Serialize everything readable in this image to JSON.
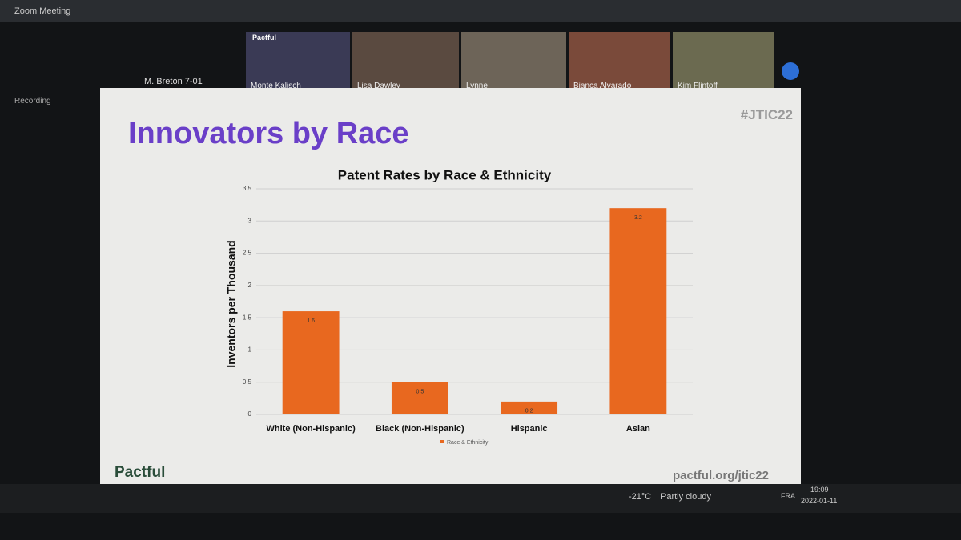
{
  "window": {
    "title": "Zoom Meeting",
    "recording": "Recording"
  },
  "participants": [
    {
      "name": "M. Breton 7-01"
    },
    {
      "name": "Monte Kalisch",
      "badge": "Pactful"
    },
    {
      "name": "Lisa Dawley"
    },
    {
      "name": "Lynne"
    },
    {
      "name": "Bianca Alvarado"
    },
    {
      "name": "Kim Flintoff"
    }
  ],
  "slide": {
    "title": "Innovators by Race",
    "hashtag": "#JTIC22",
    "logo": "Pactful",
    "url": "pactful.org/jtic22"
  },
  "chart_data": {
    "type": "bar",
    "title": "Patent Rates by Race & Ethnicity",
    "y_label": "Inventors per Thousand",
    "categories": [
      "White (Non-Hispanic)",
      "Black (Non-Hispanic)",
      "Hispanic",
      "Asian"
    ],
    "series": [
      {
        "name": "Race & Ethnicity",
        "color": "#e8681f",
        "values": [
          1.6,
          0.5,
          0.2,
          3.2
        ]
      }
    ],
    "ylim": [
      0,
      3.5
    ],
    "yticks": [
      0,
      0.5,
      1,
      1.5,
      2,
      2.5,
      3,
      3.5
    ],
    "grid": true,
    "legend": "bottom"
  },
  "taskbar": {
    "temperature": "-21°C",
    "weather": "Partly cloudy",
    "language": "FRA",
    "time": "19:09",
    "date": "2022-01-11"
  }
}
